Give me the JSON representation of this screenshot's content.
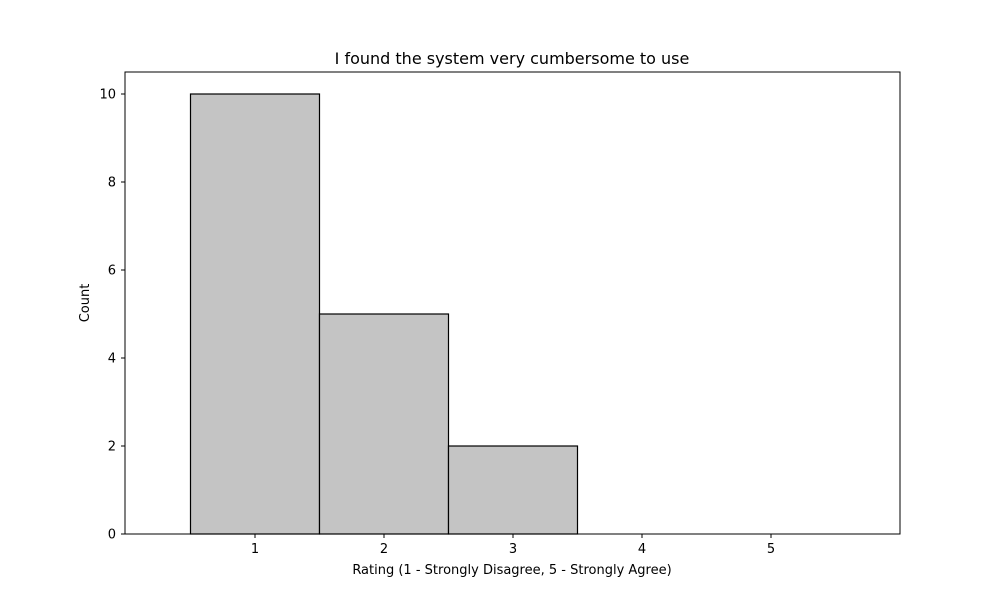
{
  "chart_data": {
    "type": "bar",
    "title": "I found the system very cumbersome to use",
    "xlabel": "Rating (1 - Strongly Disagree, 5 - Strongly Agree)",
    "ylabel": "Count",
    "categories": [
      1,
      2,
      3,
      4,
      5
    ],
    "values": [
      10,
      5,
      2,
      0,
      0
    ],
    "xlim": [
      0,
      6
    ],
    "ylim": [
      0,
      10.5
    ],
    "xticks": [
      "1",
      "2",
      "3",
      "4",
      "5"
    ],
    "yticks": [
      "0",
      "2",
      "4",
      "6",
      "8",
      "10"
    ],
    "grid": false,
    "colors": {
      "bar_fill": "#c4c4c4",
      "bar_edge": "#000000"
    }
  }
}
